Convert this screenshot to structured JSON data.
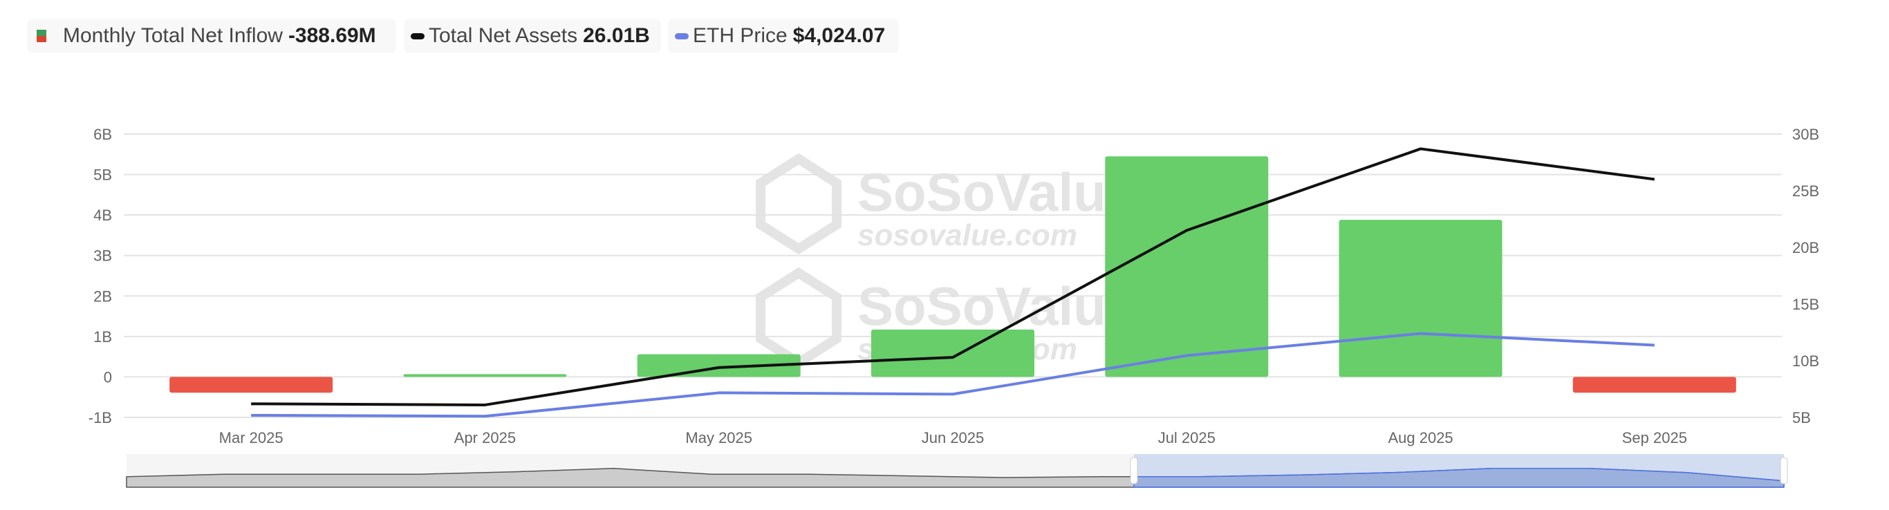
{
  "legend": [
    {
      "label": "Monthly Total Net Inflow",
      "value": "-388.69M",
      "colors": [
        "#3f9a5a",
        "#d9442f"
      ]
    },
    {
      "label": "Total Net Assets",
      "value": "26.01B",
      "color": "#111111"
    },
    {
      "label": "ETH Price",
      "value": "$4,024.07",
      "color": "#6a7fe3"
    }
  ],
  "watermark": {
    "brand": "SoSoValue",
    "url": "sosovalue.com"
  },
  "chart_data": {
    "type": "bar+line",
    "categories": [
      "Mar 2025",
      "Apr 2025",
      "May 2025",
      "Jun 2025",
      "Jul 2025",
      "Aug 2025",
      "Sep 2025"
    ],
    "left_axis": {
      "ticks": [
        "6B",
        "5B",
        "4B",
        "3B",
        "2B",
        "1B",
        "0",
        "-1B"
      ],
      "ylim": [
        -1,
        6
      ],
      "unit": "B"
    },
    "right_axis": {
      "ticks": [
        "30B",
        "25B",
        "20B",
        "15B",
        "10B",
        "5B"
      ],
      "ylim": [
        5,
        30
      ],
      "unit": "B"
    },
    "grid": true,
    "legend_position": "top-left",
    "series": [
      {
        "name": "Monthly Total Net Inflow",
        "type": "bar",
        "axis": "left",
        "unit": "B",
        "values": [
          -0.39,
          0.07,
          0.56,
          1.17,
          5.45,
          3.88,
          -0.39
        ],
        "positive_color": "#67ce6a",
        "negative_color": "#ea5546"
      },
      {
        "name": "Total Net Assets",
        "type": "line",
        "axis": "right",
        "unit": "B",
        "values": [
          6.2,
          6.1,
          9.4,
          10.3,
          21.5,
          28.7,
          26.01
        ],
        "color": "#111111"
      },
      {
        "name": "ETH Price",
        "type": "line",
        "axis": "hidden",
        "unit": "USD",
        "values": [
          1822,
          1794,
          2528,
          2486,
          3698,
          4391,
          4024.07
        ],
        "color": "#6a7fe3"
      }
    ],
    "navigator": {
      "selected_range": [
        "Mar 2025",
        "Sep 2025"
      ]
    }
  }
}
